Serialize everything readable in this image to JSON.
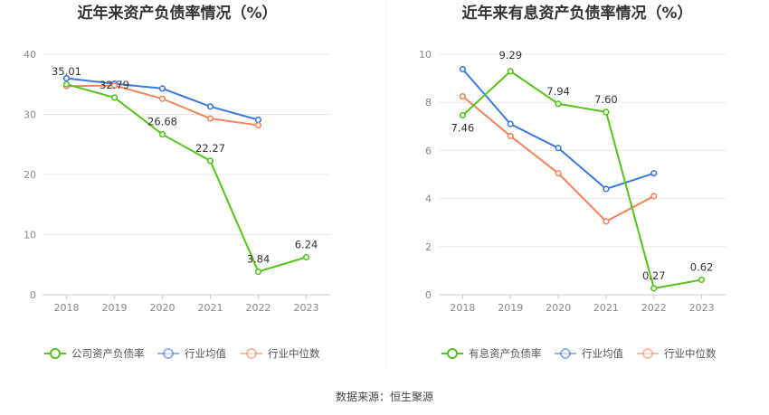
{
  "source": "数据来源：恒生聚源",
  "chart_data": [
    {
      "type": "line",
      "title": "近年来资产负债率情况（%）",
      "categories": [
        "2018",
        "2019",
        "2020",
        "2021",
        "2022",
        "2023"
      ],
      "ylim": [
        0,
        40
      ],
      "yticks": [
        0,
        10,
        20,
        30,
        40
      ],
      "grid": true,
      "legend_position": "bottom",
      "series": [
        {
          "name": "公司资产负债率",
          "color": "#52c41a",
          "values": [
            35.01,
            32.79,
            26.68,
            22.27,
            3.84,
            6.24
          ],
          "labels": [
            "35.01",
            "32.79",
            "26.68",
            "22.27",
            "3.84",
            "6.24"
          ]
        },
        {
          "name": "行业均值",
          "color": "#3b78e0",
          "values": [
            36.0,
            35.1,
            34.3,
            31.3,
            29.1,
            null
          ],
          "labels": []
        },
        {
          "name": "行业中位数",
          "color": "#f5845a",
          "values": [
            34.7,
            34.8,
            32.6,
            29.3,
            28.2,
            null
          ],
          "labels": []
        }
      ]
    },
    {
      "type": "line",
      "title": "近年来有息资产负债率情况（%）",
      "categories": [
        "2018",
        "2019",
        "2020",
        "2021",
        "2022",
        "2023"
      ],
      "ylim": [
        0,
        10
      ],
      "yticks": [
        0,
        2,
        4,
        6,
        8,
        10
      ],
      "grid": true,
      "legend_position": "bottom",
      "series": [
        {
          "name": "有息资产负债率",
          "color": "#52c41a",
          "values": [
            7.46,
            9.29,
            7.94,
            7.6,
            0.27,
            0.62
          ],
          "labels": [
            "7.46",
            "9.29",
            "7.94",
            "7.60",
            "0.27",
            "0.62"
          ]
        },
        {
          "name": "行业均值",
          "color": "#3b78e0",
          "values": [
            9.38,
            7.1,
            6.1,
            4.4,
            5.05,
            null
          ],
          "labels": []
        },
        {
          "name": "行业中位数",
          "color": "#f5845a",
          "values": [
            8.25,
            6.6,
            5.05,
            3.05,
            4.1,
            null
          ],
          "labels": []
        }
      ]
    }
  ]
}
